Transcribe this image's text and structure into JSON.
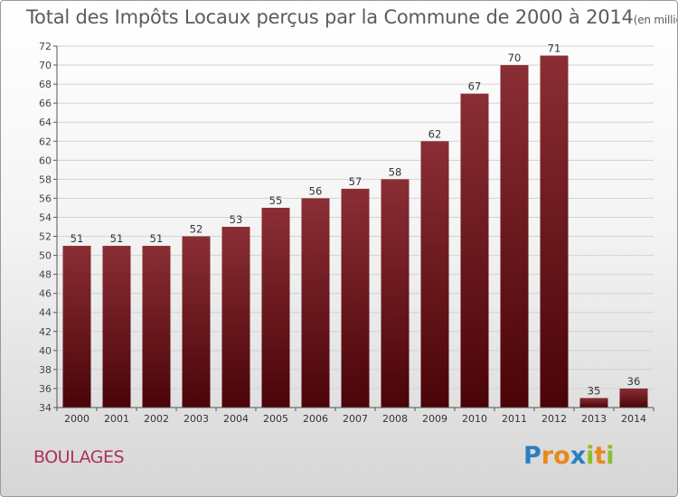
{
  "page": {
    "title": "Total des Impôts Locaux perçus par la Commune de 2000 à 2014",
    "title_unit": "(en milliers d'€)",
    "commune": "BOULAGES",
    "logo": {
      "text": "Proxiti",
      "letters": [
        {
          "ch": "P",
          "color": "#2a7fc0"
        },
        {
          "ch": "r",
          "color": "#e8891c"
        },
        {
          "ch": "o",
          "color": "#e8891c"
        },
        {
          "ch": "x",
          "color": "#2a7fc0"
        },
        {
          "ch": "i",
          "color": "#8bbf2a"
        },
        {
          "ch": "t",
          "color": "#e8891c"
        },
        {
          "ch": "i",
          "color": "#8bbf2a"
        }
      ]
    }
  },
  "chart_data": {
    "type": "bar",
    "title": "Total des Impôts Locaux perçus par la Commune de 2000 à 2014",
    "ylabel": "(en milliers d'€)",
    "categories": [
      "2000",
      "2001",
      "2002",
      "2003",
      "2004",
      "2005",
      "2006",
      "2007",
      "2008",
      "2009",
      "2010",
      "2011",
      "2012",
      "2013",
      "2014"
    ],
    "values": [
      51,
      51,
      51,
      52,
      53,
      55,
      56,
      57,
      58,
      62,
      67,
      70,
      71,
      35,
      36
    ],
    "ylim": [
      34,
      72
    ],
    "yticks": [
      34,
      36,
      38,
      40,
      42,
      44,
      46,
      48,
      50,
      52,
      54,
      56,
      58,
      60,
      62,
      64,
      66,
      68,
      70,
      72
    ],
    "grid": true,
    "bar_color": "#7a1c24"
  }
}
